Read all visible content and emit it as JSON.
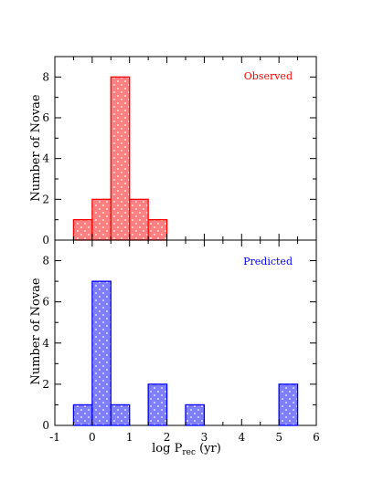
{
  "figure": {
    "xlabel_main": "log P",
    "xlabel_sub": "rec",
    "xlabel_unit": " (yr)"
  },
  "chart_data": [
    {
      "type": "bar",
      "label": "Observed",
      "ylabel": "Number of  Novae",
      "color": "#ff0000",
      "fill": "#ff8080",
      "bin_width": 0.5,
      "bins": [
        {
          "x0": -0.5,
          "x1": 0.0,
          "value": 1
        },
        {
          "x0": 0.0,
          "x1": 0.5,
          "value": 2
        },
        {
          "x0": 0.5,
          "x1": 1.0,
          "value": 8
        },
        {
          "x0": 1.0,
          "x1": 1.5,
          "value": 2
        },
        {
          "x0": 1.5,
          "x1": 2.0,
          "value": 1
        }
      ],
      "xlim": [
        -1,
        6
      ],
      "ylim": [
        0,
        9
      ],
      "yticks": [
        0,
        2,
        4,
        6,
        8
      ]
    },
    {
      "type": "bar",
      "label": "Predicted",
      "ylabel": "Number of Novae",
      "color": "#0000ff",
      "fill": "#8080ff",
      "bin_width": 0.5,
      "bins": [
        {
          "x0": -0.5,
          "x1": 0.0,
          "value": 1
        },
        {
          "x0": 0.0,
          "x1": 0.5,
          "value": 7
        },
        {
          "x0": 0.5,
          "x1": 1.0,
          "value": 1
        },
        {
          "x0": 1.5,
          "x1": 2.0,
          "value": 2
        },
        {
          "x0": 2.5,
          "x1": 3.0,
          "value": 1
        },
        {
          "x0": 5.0,
          "x1": 5.5,
          "value": 2
        }
      ],
      "xlim": [
        -1,
        6
      ],
      "ylim": [
        0,
        9
      ],
      "yticks": [
        0,
        2,
        4,
        6,
        8
      ],
      "xticks": [
        -1,
        0,
        1,
        2,
        3,
        4,
        5,
        6
      ]
    }
  ]
}
